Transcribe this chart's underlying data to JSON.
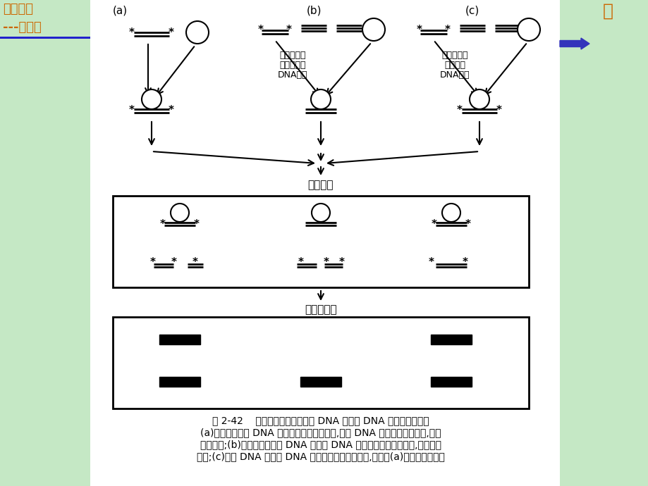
{
  "bg_left_color": "#c5e8c5",
  "bg_right_color": "#c5e8c5",
  "bg_white": "#ffffff",
  "black": "#000000",
  "orange_text": "#cc6600",
  "blue_arrow": "#3333bb",
  "label_a": "(a)",
  "label_b": "(b)",
  "label_c": "(c)",
  "text_b1": "蛋白质与未",
  "text_b2": "标记的竞争",
  "text_b3": "DNA结合",
  "text_c1": "蛋白质与标",
  "text_c2": "记的探针",
  "text_c3": "DNA结合",
  "text_gel": "凝胶电冀",
  "text_autorad": "放射自显影",
  "caption_line1": "图 2-42    在凝胶阻滞实验中竞争 DNA 与探针 DNA 之间的竞争作用",
  "caption_line2": "(a)没有加入竞争 DNA 的正常的凝胶阻滞实验,探针 DNA 与特异蛋白质结合,出现",
  "caption_line3": "阻滞条带;(b)加入的超量竞争 DNA 与探针 DNA 竞争结合同一种蛋白质,阻滞条带",
  "caption_line4": "消失;(c)竞争 DNA 与探针 DNA 分别结合不同的蛋白质,出现同(a)一样的阻滞条带"
}
